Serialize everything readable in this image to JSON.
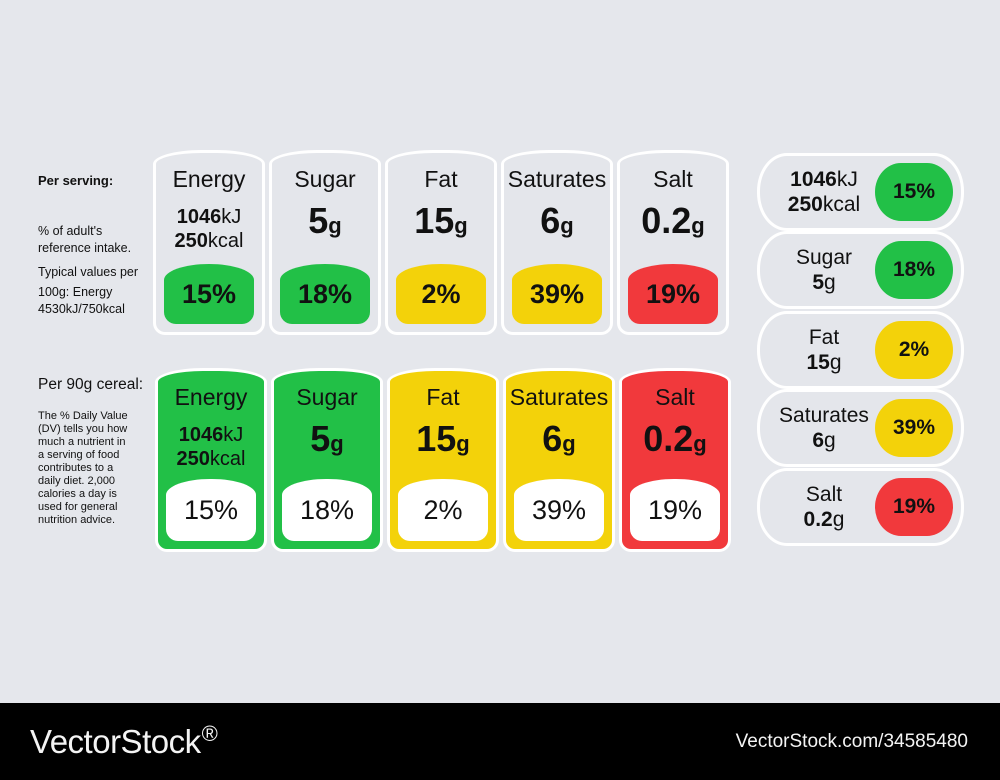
{
  "colors": {
    "green": "#22c047",
    "yellow": "#f3d20a",
    "red": "#f1393c",
    "white": "#ffffff",
    "bg": "#e5e7ec"
  },
  "sidebar": {
    "per_serving": "Per serving:",
    "intake_lines": [
      "% of adult's",
      "reference intake.",
      "Typical values per",
      "100g: Energy",
      "4530kJ/750kcal"
    ],
    "per_cereal": "Per 90g cereal:",
    "dv_lines": [
      "The % Daily Value",
      "(DV) tells you how",
      "much a nutrient in",
      "a serving of food",
      "contributes to a",
      "daily diet. 2,000",
      "calories a day is",
      "used for general",
      "nutrition advice."
    ]
  },
  "nutrients": [
    {
      "label": "Energy",
      "kj_num": "1046",
      "kj_unit": "kJ",
      "kcal_num": "250",
      "kcal_unit": "kcal",
      "percent": "15%",
      "color": "#22c047"
    },
    {
      "label": "Sugar",
      "amount": "5",
      "unit": "g",
      "percent": "18%",
      "color": "#22c047"
    },
    {
      "label": "Fat",
      "amount": "15",
      "unit": "g",
      "percent": "2%",
      "color": "#f3d20a"
    },
    {
      "label": "Saturates",
      "amount": "6",
      "unit": "g",
      "percent": "39%",
      "color": "#f3d20a"
    },
    {
      "label": "Salt",
      "amount": "0.2",
      "unit": "g",
      "percent": "19%",
      "color": "#f1393c"
    }
  ],
  "footer": {
    "brand": "VectorStock",
    "trademark": "®",
    "credit": "VectorStock.com/34585480"
  }
}
